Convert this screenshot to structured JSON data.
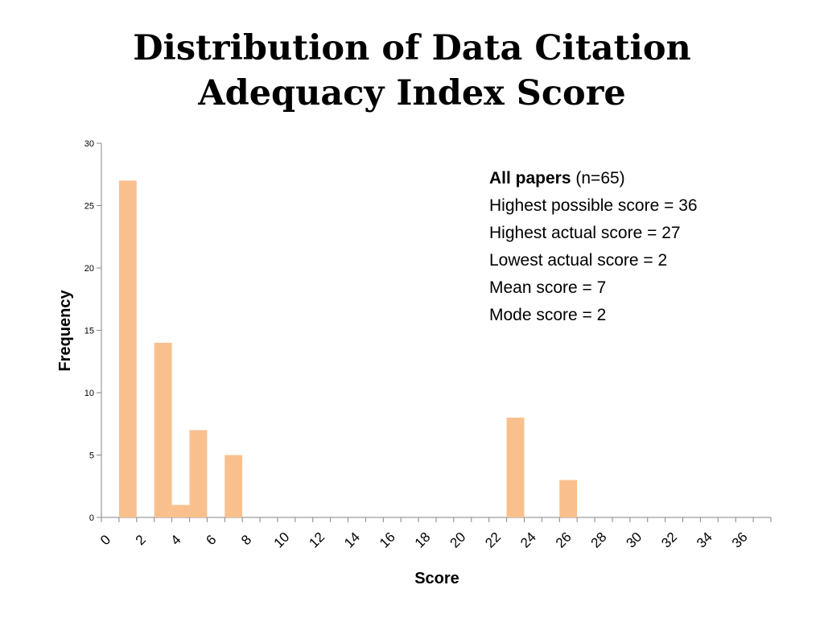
{
  "title_lines": [
    "Distribution of Data Citation",
    "Adequacy Index Score"
  ],
  "annotation": {
    "heading_bold": "All papers",
    "heading_rest": " (n=65)",
    "lines": [
      "Highest possible score = 36",
      "Highest actual score = 27",
      "Lowest actual score = 2",
      "Mean score = 7",
      "Mode score = 2"
    ]
  },
  "colors": {
    "bar": "#F9C08E",
    "axis": "#868686"
  },
  "chart_data": {
    "type": "bar",
    "title": "Distribution of Data Citation Adequacy Index Score",
    "xlabel": "Score",
    "ylabel": "Frequency",
    "ylim": [
      0,
      30
    ],
    "yticks": [
      0,
      5,
      10,
      15,
      20,
      25,
      30
    ],
    "xlim": [
      0,
      38
    ],
    "xticks": [
      0,
      2,
      4,
      6,
      8,
      10,
      12,
      14,
      16,
      18,
      20,
      22,
      24,
      26,
      28,
      30,
      32,
      34,
      36
    ],
    "bars": [
      {
        "x": 2,
        "value": 27
      },
      {
        "x": 4,
        "value": 14
      },
      {
        "x": 5,
        "value": 1
      },
      {
        "x": 6,
        "value": 7
      },
      {
        "x": 8,
        "value": 5
      },
      {
        "x": 24,
        "value": 8
      },
      {
        "x": 27,
        "value": 3
      }
    ],
    "grid": false,
    "legend": "none"
  }
}
